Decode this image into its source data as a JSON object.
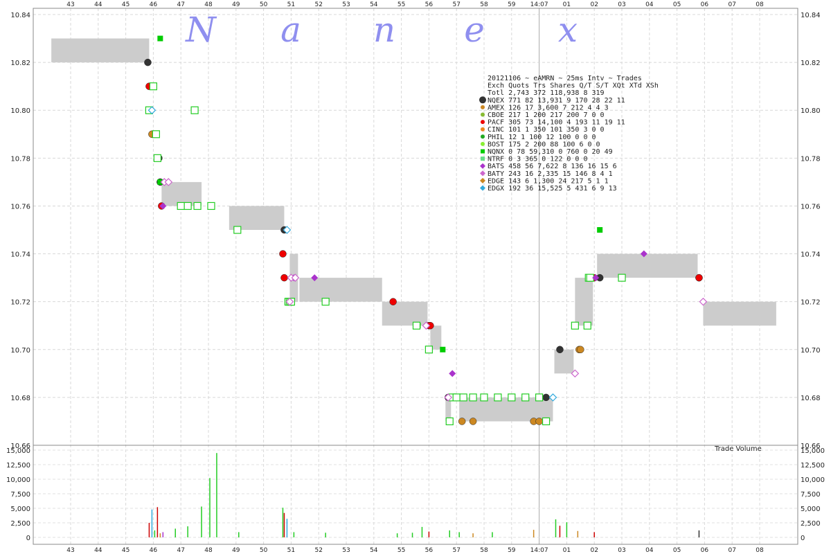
{
  "chart_data": {
    "type": "scatter",
    "watermark": [
      "N",
      "a",
      "n",
      "e",
      "x"
    ],
    "x_ticks": [
      "43",
      "44",
      "45",
      "46",
      "47",
      "48",
      "49",
      "50",
      "51",
      "52",
      "53",
      "54",
      "55",
      "56",
      "57",
      "58",
      "59",
      "14:07",
      "01",
      "02",
      "03",
      "04",
      "05",
      "06",
      "07",
      "08"
    ],
    "price_axis": {
      "ylim": [
        10.66,
        10.84
      ],
      "ticks": [
        "10.84",
        "10.82",
        "10.80",
        "10.78",
        "10.76",
        "10.74",
        "10.72",
        "10.70",
        "10.68",
        "10.66"
      ]
    },
    "volume_axis": {
      "ylim": [
        0,
        15000
      ],
      "ticks": [
        "15,000",
        "12,500",
        "10,000",
        "7,500",
        "5,000",
        "2,500",
        "0"
      ],
      "label": "Trade Volume"
    },
    "grid": true,
    "nbbo_bands": [
      {
        "x0": 42.3,
        "x1": 45.85,
        "bid": 10.82,
        "ask": 10.83
      },
      {
        "x0": 46.3,
        "x1": 47.75,
        "bid": 10.76,
        "ask": 10.77
      },
      {
        "x0": 48.75,
        "x1": 50.75,
        "bid": 10.75,
        "ask": 10.76
      },
      {
        "x0": 50.95,
        "x1": 51.25,
        "bid": 10.72,
        "ask": 10.74
      },
      {
        "x0": 51.3,
        "x1": 54.3,
        "bid": 10.72,
        "ask": 10.73
      },
      {
        "x0": 54.3,
        "x1": 55.45,
        "bid": 10.71,
        "ask": 10.72
      },
      {
        "x0": 55.45,
        "x1": 55.95,
        "bid": 10.71,
        "ask": 10.72
      },
      {
        "x0": 56.05,
        "x1": 56.45,
        "bid": 10.7,
        "ask": 10.71
      },
      {
        "x0": 56.6,
        "x1": 56.8,
        "bid": 10.67,
        "ask": 10.68
      },
      {
        "x0": 57.1,
        "x1": 60.5,
        "bid": 10.67,
        "ask": 10.68
      },
      {
        "x0": 60.55,
        "x1": 61.25,
        "bid": 10.69,
        "ask": 10.7
      },
      {
        "x0": 61.3,
        "x1": 61.95,
        "bid": 10.71,
        "ask": 10.73
      },
      {
        "x0": 62.1,
        "x1": 65.75,
        "bid": 10.73,
        "ask": 10.74
      },
      {
        "x0": 65.95,
        "x1": 68.6,
        "bid": 10.71,
        "ask": 10.72
      }
    ],
    "series": [
      {
        "name": "NQEX",
        "color": "#333333",
        "marker": "circle",
        "points": [
          [
            45.8,
            10.82
          ],
          [
            46.0,
            10.79
          ],
          [
            46.2,
            10.78
          ],
          [
            46.25,
            10.77
          ],
          [
            50.75,
            10.75
          ],
          [
            56.0,
            10.7
          ],
          [
            56.7,
            10.68
          ],
          [
            60.25,
            10.68
          ],
          [
            60.75,
            10.7
          ],
          [
            62.2,
            10.73
          ],
          [
            65.8,
            10.73
          ]
        ]
      },
      {
        "name": "AMEX",
        "color": "#cc8822",
        "marker": "circle",
        "points": [
          [
            45.95,
            10.79
          ],
          [
            57.2,
            10.67
          ],
          [
            57.6,
            10.67
          ],
          [
            59.8,
            10.67
          ],
          [
            60.0,
            10.67
          ],
          [
            61.45,
            10.7
          ],
          [
            61.5,
            10.7
          ]
        ]
      },
      {
        "name": "PACF",
        "color": "#ee0000",
        "marker": "circle",
        "points": [
          [
            45.85,
            10.81
          ],
          [
            46.3,
            10.76
          ],
          [
            50.7,
            10.74
          ],
          [
            50.75,
            10.73
          ],
          [
            54.7,
            10.72
          ],
          [
            56.0,
            10.71
          ],
          [
            56.05,
            10.71
          ],
          [
            62.0,
            10.73
          ],
          [
            65.8,
            10.73
          ]
        ]
      },
      {
        "name": "NQNX",
        "color": "#00cc00",
        "marker": "square-filled",
        "points": [
          [
            46.25,
            10.83
          ],
          [
            46.25,
            10.77
          ],
          [
            55.6,
            10.71
          ],
          [
            56.5,
            10.7
          ],
          [
            62.2,
            10.75
          ]
        ]
      },
      {
        "name": "NTRF",
        "color": "#22cc22",
        "marker": "square-open",
        "points": [
          [
            45.85,
            10.8
          ],
          [
            46.0,
            10.81
          ],
          [
            46.1,
            10.79
          ],
          [
            46.15,
            10.78
          ],
          [
            47.0,
            10.76
          ],
          [
            47.25,
            10.76
          ],
          [
            47.6,
            10.76
          ],
          [
            48.1,
            10.76
          ],
          [
            49.05,
            10.75
          ],
          [
            50.9,
            10.72
          ],
          [
            50.95,
            10.72
          ],
          [
            51.0,
            10.72
          ],
          [
            52.25,
            10.72
          ],
          [
            55.55,
            10.71
          ],
          [
            56.0,
            10.7
          ],
          [
            56.75,
            10.67
          ],
          [
            56.85,
            10.68
          ],
          [
            57.0,
            10.68
          ],
          [
            57.25,
            10.68
          ],
          [
            57.6,
            10.68
          ],
          [
            58.0,
            10.68
          ],
          [
            58.5,
            10.68
          ],
          [
            59.0,
            10.68
          ],
          [
            59.5,
            10.68
          ],
          [
            60.0,
            10.68
          ],
          [
            60.25,
            10.67
          ],
          [
            61.3,
            10.71
          ],
          [
            61.75,
            10.71
          ],
          [
            61.8,
            10.73
          ],
          [
            61.85,
            10.73
          ],
          [
            63.0,
            10.73
          ],
          [
            47.5,
            10.8
          ]
        ]
      },
      {
        "name": "BATS",
        "color": "#aa33cc",
        "marker": "diamond",
        "points": [
          [
            46.35,
            10.76
          ],
          [
            51.1,
            10.73
          ],
          [
            51.85,
            10.73
          ],
          [
            56.85,
            10.69
          ],
          [
            62.05,
            10.73
          ],
          [
            63.8,
            10.74
          ]
        ]
      },
      {
        "name": "BATY",
        "color": "#cc66cc",
        "marker": "diamond-open",
        "points": [
          [
            46.4,
            10.77
          ],
          [
            46.55,
            10.77
          ],
          [
            50.95,
            10.72
          ],
          [
            51.0,
            10.73
          ],
          [
            51.15,
            10.73
          ],
          [
            55.9,
            10.71
          ],
          [
            56.7,
            10.68
          ],
          [
            61.3,
            10.69
          ],
          [
            65.95,
            10.72
          ]
        ]
      },
      {
        "name": "EDGX",
        "color": "#33aadd",
        "marker": "diamond-open",
        "points": [
          [
            45.95,
            10.8
          ],
          [
            50.85,
            10.75
          ],
          [
            60.5,
            10.68
          ]
        ]
      }
    ],
    "volume_bars": [
      {
        "x": 45.85,
        "v": 2500,
        "c": "#cc0000"
      },
      {
        "x": 45.95,
        "v": 4800,
        "c": "#33aadd"
      },
      {
        "x": 46.05,
        "v": 1200,
        "c": "#22cc22"
      },
      {
        "x": 46.15,
        "v": 5200,
        "c": "#cc0000"
      },
      {
        "x": 46.25,
        "v": 700,
        "c": "#cc8822"
      },
      {
        "x": 46.35,
        "v": 900,
        "c": "#aa33cc"
      },
      {
        "x": 46.8,
        "v": 1500,
        "c": "#22cc22"
      },
      {
        "x": 47.25,
        "v": 1900,
        "c": "#22cc22"
      },
      {
        "x": 47.75,
        "v": 5300,
        "c": "#22cc22"
      },
      {
        "x": 48.05,
        "v": 10200,
        "c": "#22cc22"
      },
      {
        "x": 48.3,
        "v": 14500,
        "c": "#22cc22"
      },
      {
        "x": 49.1,
        "v": 900,
        "c": "#22cc22"
      },
      {
        "x": 50.7,
        "v": 5100,
        "c": "#22cc22"
      },
      {
        "x": 50.75,
        "v": 4200,
        "c": "#cc0000"
      },
      {
        "x": 50.85,
        "v": 3200,
        "c": "#33aadd"
      },
      {
        "x": 51.1,
        "v": 900,
        "c": "#22cc22"
      },
      {
        "x": 52.25,
        "v": 800,
        "c": "#22cc22"
      },
      {
        "x": 54.85,
        "v": 700,
        "c": "#22cc22"
      },
      {
        "x": 55.4,
        "v": 800,
        "c": "#22cc22"
      },
      {
        "x": 55.75,
        "v": 1800,
        "c": "#22cc22"
      },
      {
        "x": 56.0,
        "v": 1000,
        "c": "#cc0000"
      },
      {
        "x": 56.75,
        "v": 1200,
        "c": "#22cc22"
      },
      {
        "x": 57.1,
        "v": 900,
        "c": "#22cc22"
      },
      {
        "x": 57.6,
        "v": 700,
        "c": "#cc8822"
      },
      {
        "x": 58.3,
        "v": 900,
        "c": "#22cc22"
      },
      {
        "x": 59.8,
        "v": 1300,
        "c": "#cc8822"
      },
      {
        "x": 60.6,
        "v": 3100,
        "c": "#22cc22"
      },
      {
        "x": 60.75,
        "v": 2000,
        "c": "#cc0000"
      },
      {
        "x": 61.0,
        "v": 2600,
        "c": "#22cc22"
      },
      {
        "x": 61.4,
        "v": 1100,
        "c": "#cc8822"
      },
      {
        "x": 62.0,
        "v": 900,
        "c": "#cc0000"
      },
      {
        "x": 65.8,
        "v": 1200,
        "c": "#333333"
      }
    ],
    "stats_table": {
      "title": "20121106 ~ eAMRN ~ 25ms Intv ~ Trades",
      "header": "Exch Quots Trs  Shares  Q/T   S/T  XQt XTd XSh",
      "total": "Totl 2,743 372 118,938    8   319",
      "rows": [
        {
          "marker": "circle",
          "color": "#333333",
          "text": "NQEX   771  82  13,931    9   170  28  22  11"
        },
        {
          "marker": "circle",
          "color": "#cc8822",
          "text": "AMEX   126  17   3,600    7   212   4   4   3"
        },
        {
          "marker": "circle",
          "color": "#88bb33",
          "text": "CBOE   217   1     200  217   200   7   0   0"
        },
        {
          "marker": "circle",
          "color": "#ee0000",
          "text": "PACF   305  73  14,100    4   193  11  19  11"
        },
        {
          "marker": "circle",
          "color": "#ee8822",
          "text": "CINC   101   1     350  101   350   3   0   0"
        },
        {
          "marker": "circle",
          "color": "#22aa22",
          "text": "PHIL    12   1     100   12   100   0   0   0"
        },
        {
          "marker": "circle",
          "color": "#88ee33",
          "text": "BOST   175   2     200   88   100   6   0   0"
        },
        {
          "marker": "square",
          "color": "#00cc00",
          "text": "NQNX     0  78  59,310    0   760   0  20  49"
        },
        {
          "marker": "square",
          "color": "#66dd88",
          "text": "NTRF     0   3     365    0   122   0   0   0"
        },
        {
          "marker": "diamond",
          "color": "#aa33cc",
          "text": "BATS   458  56   7,622    8   136  16  15   6"
        },
        {
          "marker": "diamond",
          "color": "#cc66cc",
          "text": "BATY   243  16   2,335   15   146   8   4   1"
        },
        {
          "marker": "diamond",
          "color": "#cc8822",
          "text": "EDGE   143   6   1,300   24   217   5   1   1"
        },
        {
          "marker": "diamond",
          "color": "#33aadd",
          "text": "EDGX   192  36  15,525    5   431   6   9  13"
        }
      ]
    }
  }
}
